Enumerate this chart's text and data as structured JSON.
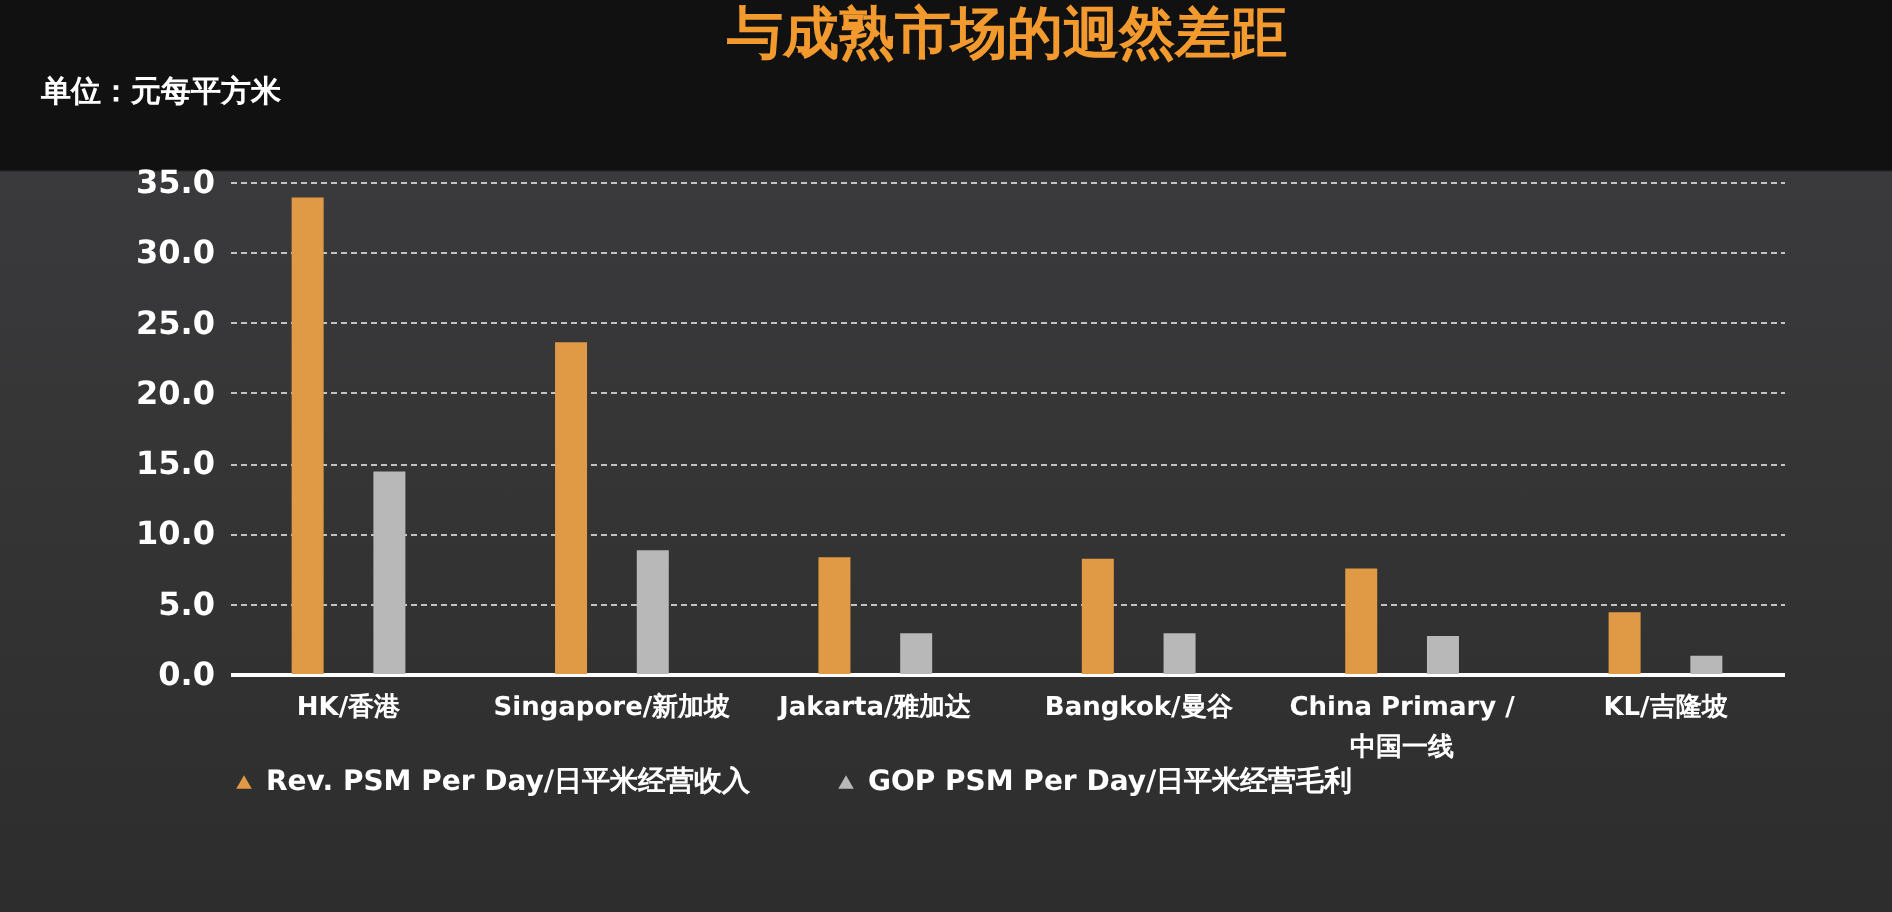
{
  "chart_data": {
    "type": "bar",
    "title": "与成熟市场的迥然差距",
    "ylabel": "单位：元每平方米",
    "categories": [
      "HK/香港",
      "Singapore/新加坡",
      "Jakarta/雅加达",
      "Bangkok/曼谷",
      "China Primary / 中国一线",
      "KL/吉隆坡"
    ],
    "series": [
      {
        "name": "Rev. PSM Per Day/日平米经营收入",
        "color": "#e09a45",
        "values": [
          33.9,
          23.6,
          8.3,
          8.2,
          7.5,
          4.4
        ]
      },
      {
        "name": "GOP PSM Per Day/日平米经营毛利",
        "color": "#b8b8b8",
        "values": [
          14.4,
          8.8,
          2.9,
          2.9,
          2.7,
          1.3
        ]
      }
    ],
    "ylim": [
      0,
      35
    ],
    "yticks": [
      {
        "value": 0,
        "label": "0.0"
      },
      {
        "value": 5,
        "label": "5.0"
      },
      {
        "value": 10,
        "label": "10.0"
      },
      {
        "value": 15,
        "label": "15.0"
      },
      {
        "value": 20,
        "label": "20.0"
      },
      {
        "value": 25,
        "label": "25.0"
      },
      {
        "value": 30,
        "label": "30.0"
      },
      {
        "value": 35,
        "label": "35.0"
      }
    ],
    "grid": "y",
    "legend": "bottom"
  }
}
